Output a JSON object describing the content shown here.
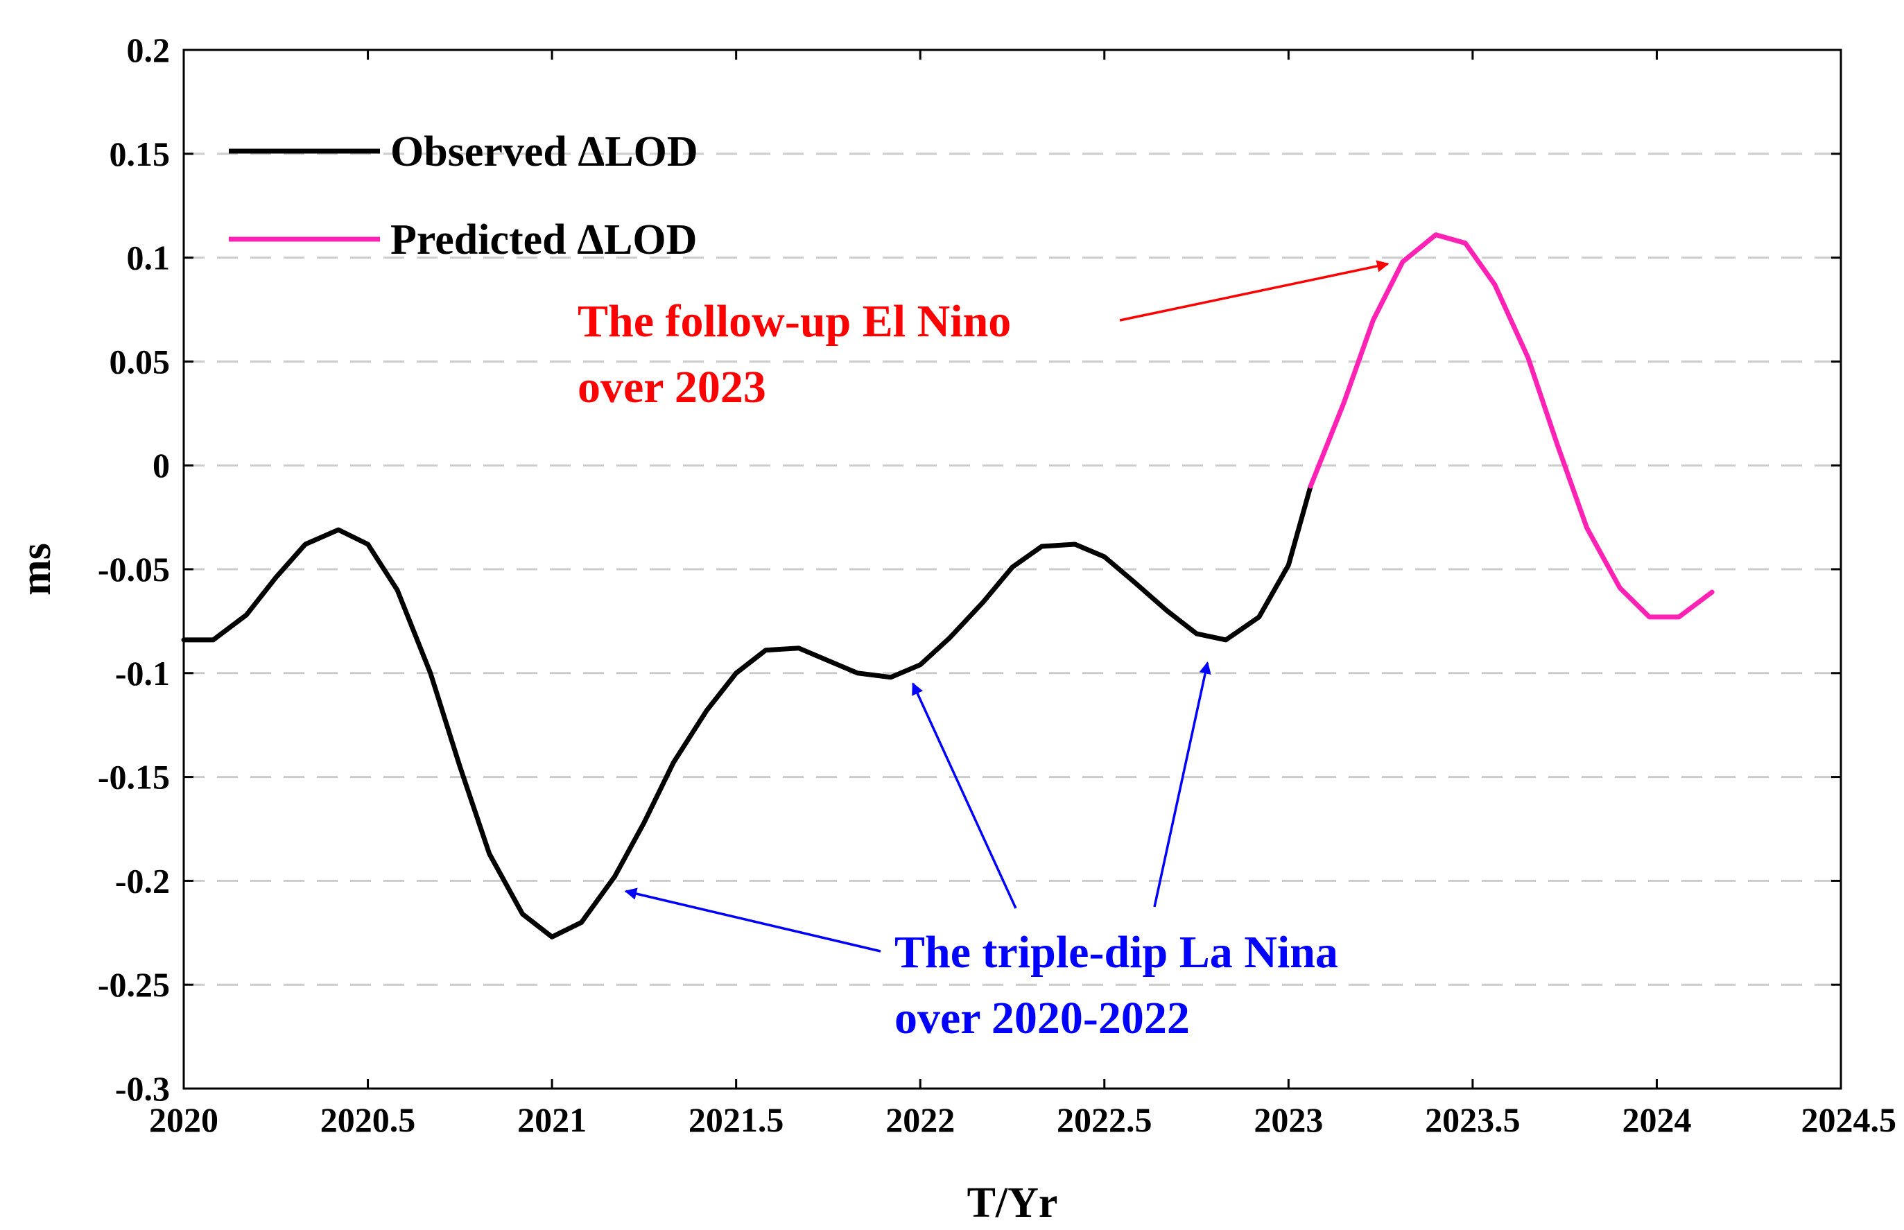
{
  "chart_data": {
    "type": "line",
    "xlabel": "T/Yr",
    "ylabel": "ms",
    "xlim": [
      2020,
      2024.5
    ],
    "ylim": [
      -0.3,
      0.2
    ],
    "xticks": [
      2020,
      2020.5,
      2021,
      2021.5,
      2022,
      2022.5,
      2023,
      2023.5,
      2024,
      2024.5
    ],
    "xtick_labels": [
      "2020",
      "2020.5",
      "2021",
      "2021.5",
      "2022",
      "2022.5",
      "2023",
      "2023.5",
      "2024",
      "2024.5"
    ],
    "yticks": [
      0.2,
      0.15,
      0.1,
      0.05,
      0,
      -0.05,
      -0.1,
      -0.15,
      -0.2,
      -0.25,
      -0.3
    ],
    "ytick_labels": [
      "0.2",
      "0.15",
      "0.1",
      "0.05",
      "0",
      "-0.05",
      "-0.1",
      "-0.15",
      "-0.2",
      "-0.25",
      "-0.3"
    ],
    "grid": "horizontal dashed",
    "legend_position": "top-left",
    "series": [
      {
        "name": "Observed ΔLOD",
        "color": "#000000",
        "x": [
          2020.0,
          2020.08,
          2020.17,
          2020.25,
          2020.33,
          2020.42,
          2020.5,
          2020.58,
          2020.67,
          2020.75,
          2020.83,
          2020.92,
          2021.0,
          2021.08,
          2021.17,
          2021.25,
          2021.33,
          2021.42,
          2021.5,
          2021.58,
          2021.67,
          2021.75,
          2021.83,
          2021.92,
          2022.0,
          2022.08,
          2022.17,
          2022.25,
          2022.33,
          2022.42,
          2022.5,
          2022.58,
          2022.67,
          2022.75,
          2022.83,
          2022.92,
          2023.0,
          2023.06
        ],
        "y": [
          -0.084,
          -0.084,
          -0.072,
          -0.054,
          -0.038,
          -0.031,
          -0.038,
          -0.06,
          -0.1,
          -0.145,
          -0.187,
          -0.216,
          -0.227,
          -0.22,
          -0.198,
          -0.172,
          -0.143,
          -0.118,
          -0.1,
          -0.089,
          -0.088,
          -0.094,
          -0.1,
          -0.102,
          -0.096,
          -0.083,
          -0.066,
          -0.049,
          -0.039,
          -0.038,
          -0.044,
          -0.056,
          -0.07,
          -0.081,
          -0.084,
          -0.073,
          -0.048,
          -0.01
        ]
      },
      {
        "name": "Predicted ΔLOD",
        "color": "#ff22b4",
        "x": [
          2023.06,
          2023.15,
          2023.23,
          2023.31,
          2023.4,
          2023.48,
          2023.56,
          2023.65,
          2023.73,
          2023.81,
          2023.9,
          2023.98,
          2024.06,
          2024.15
        ],
        "y": [
          -0.01,
          0.03,
          0.07,
          0.098,
          0.111,
          0.107,
          0.087,
          0.052,
          0.01,
          -0.03,
          -0.059,
          -0.073,
          -0.073,
          -0.061
        ]
      }
    ],
    "annotations": [
      {
        "lines": [
          "The follow-up El Nino",
          "over 2023"
        ],
        "color": "#ff0000",
        "targets": [
          {
            "x": 2023.27,
            "y": 0.097
          }
        ]
      },
      {
        "lines": [
          "The triple-dip La Nina",
          "over 2020-2022"
        ],
        "color": "#0000ff",
        "targets": [
          {
            "x": 2021.2,
            "y": -0.205
          },
          {
            "x": 2021.98,
            "y": -0.105
          },
          {
            "x": 2022.78,
            "y": -0.095
          }
        ]
      }
    ]
  }
}
